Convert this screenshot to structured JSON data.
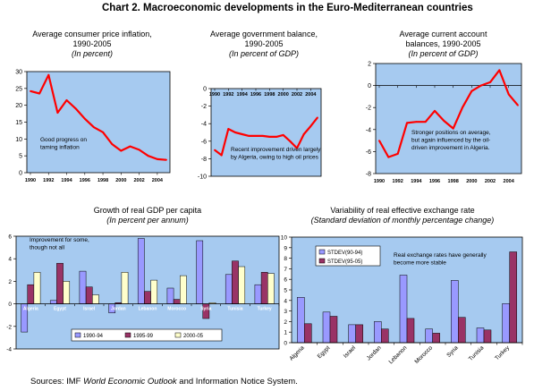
{
  "page": {
    "title": "Chart 2. Macroeconomic developments in the Euro-Mediterranean countries",
    "source_prefix": "Sources: IMF ",
    "source_italic": "World Economic Outlook",
    "source_suffix": " and Information Notice System."
  },
  "colors": {
    "plot_bg": "#A6CAF0",
    "line": "#FF0000",
    "bar_lavender": "#9999FF",
    "bar_maroon": "#993366",
    "bar_cream": "#FFFFCC"
  },
  "chart_data": [
    {
      "type": "line",
      "title": "Average consumer price inflation,",
      "title2": "1990-2005",
      "subtitle": "(In percent)",
      "annotation": [
        "Good progress on",
        "taming inflation"
      ],
      "x": [
        1990,
        1991,
        1992,
        1993,
        1994,
        1995,
        1996,
        1997,
        1998,
        1999,
        2000,
        2001,
        2002,
        2003,
        2004,
        2005
      ],
      "y": [
        24.2,
        23.5,
        29.0,
        17.8,
        21.5,
        19.0,
        16.0,
        13.5,
        12.0,
        8.5,
        6.5,
        7.8,
        6.8,
        5.0,
        4.0,
        3.8
      ],
      "x_ticks": [
        "1990",
        "1992",
        "1994",
        "1996",
        "1998",
        "2000",
        "2002",
        "2004"
      ],
      "y_ticks": [
        "0",
        "5",
        "10",
        "15",
        "20",
        "25",
        "30"
      ],
      "ylim": [
        0,
        30
      ]
    },
    {
      "type": "line",
      "title": "Average government balance,",
      "title2": "1990-2005",
      "subtitle": "(In percent of GDP)",
      "annotation": [
        "Recent improvement driven largely",
        "by Algeria, owing to high oil prices"
      ],
      "x": [
        1990,
        1991,
        1992,
        1993,
        1994,
        1995,
        1996,
        1997,
        1998,
        1999,
        2000,
        2001,
        2002,
        2003,
        2004,
        2005
      ],
      "y": [
        -7.0,
        -7.6,
        -4.6,
        -5.0,
        -5.2,
        -5.4,
        -5.4,
        -5.4,
        -5.5,
        -5.5,
        -5.3,
        -6.0,
        -6.8,
        -5.2,
        -4.3,
        -3.3
      ],
      "x_ticks": [
        "1990",
        "1992",
        "1994",
        "1996",
        "1998",
        "2000",
        "2002",
        "2004"
      ],
      "y_ticks": [
        "0",
        "-2",
        "-4",
        "-6",
        "-8",
        "-10"
      ],
      "ylim": [
        -10,
        0
      ]
    },
    {
      "type": "line",
      "title": "Average current account",
      "title2": "balances, 1990-2005",
      "subtitle": "(In percent of GDP)",
      "annotation": [
        "Stronger positions on average,",
        "but again influenced by the oil-",
        "driven improvement in Algeria."
      ],
      "x": [
        1990,
        1991,
        1992,
        1993,
        1994,
        1995,
        1996,
        1997,
        1998,
        1999,
        2000,
        2001,
        2002,
        2003,
        2004,
        2005
      ],
      "y": [
        -5.0,
        -6.5,
        -6.2,
        -3.4,
        -3.3,
        -3.3,
        -2.3,
        -3.2,
        -3.9,
        -2.0,
        -0.5,
        0.0,
        0.3,
        1.4,
        -0.8,
        -1.8
      ],
      "x_ticks": [
        "1990",
        "1992",
        "1994",
        "1996",
        "1998",
        "2000",
        "2002",
        "2004"
      ],
      "y_ticks": [
        "2",
        "0",
        "-2",
        "-4",
        "-6",
        "-8"
      ],
      "ylim": [
        -8,
        2
      ]
    },
    {
      "type": "bar",
      "title": "Growth of real GDP per capita",
      "subtitle": "(In percent per annum)",
      "annotation": [
        "Improvement for some,",
        "though not all"
      ],
      "categories": [
        "Algeria",
        "Egypt",
        "Israel",
        "Jordan",
        "Lebanon",
        "Morocco",
        "Syria",
        "Tunisia",
        "Turkey"
      ],
      "series": [
        {
          "name": "1990-94",
          "values": [
            -2.5,
            0.3,
            2.9,
            -0.8,
            5.8,
            1.4,
            5.6,
            2.6,
            1.7
          ]
        },
        {
          "name": "1995-99",
          "values": [
            1.7,
            3.6,
            1.5,
            0.1,
            1.1,
            0.4,
            -1.3,
            3.8,
            2.8
          ]
        },
        {
          "name": "2000-05",
          "values": [
            2.8,
            2.0,
            0.8,
            2.8,
            2.1,
            2.5,
            0.1,
            3.3,
            2.7
          ]
        }
      ],
      "y_ticks": [
        "-4",
        "-2",
        "0",
        "2",
        "4",
        "6"
      ],
      "ylim": [
        -4,
        6
      ]
    },
    {
      "type": "bar",
      "title": "Variability of real effective exchange rate",
      "subtitle": "(Standard deviation of monthly percentage change)",
      "annotation": [
        "Real exchange rates have generally",
        "become more stable"
      ],
      "categories": [
        "Algeria",
        "Egypt",
        "Israel",
        "Jordan",
        "Lebanon",
        "Morocco",
        "Syria",
        "Tunisia",
        "Turkey"
      ],
      "series": [
        {
          "name": "STDEV(90-94)",
          "values": [
            4.3,
            2.9,
            1.7,
            2.0,
            6.4,
            1.3,
            5.9,
            1.4,
            3.7
          ]
        },
        {
          "name": "STDEV(95-05)",
          "values": [
            1.8,
            2.5,
            1.7,
            1.3,
            2.3,
            0.9,
            2.4,
            1.2,
            8.6
          ]
        }
      ],
      "y_ticks": [
        "0",
        "1",
        "2",
        "3",
        "4",
        "5",
        "6",
        "7",
        "8",
        "9",
        "10"
      ],
      "ylim": [
        0,
        10
      ]
    }
  ]
}
